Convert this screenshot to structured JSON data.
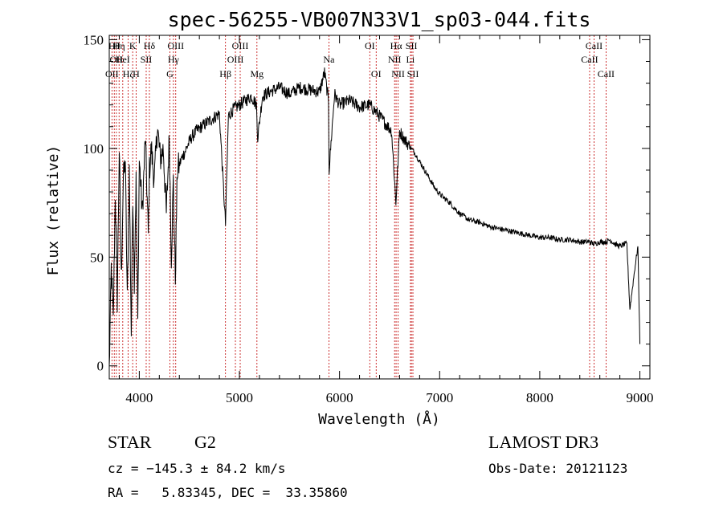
{
  "chart_data": {
    "type": "line",
    "title": "spec-56255-VB007N33V1_sp03-044.fits",
    "xlabel": "Wavelength (Å)",
    "ylabel": "Flux (relative)",
    "xlim": [
      3700,
      9100
    ],
    "ylim": [
      -6,
      152
    ],
    "xticks": [
      4000,
      5000,
      6000,
      7000,
      8000,
      9000
    ],
    "yticks": [
      0,
      50,
      100,
      150
    ],
    "series": [
      {
        "name": "flux",
        "x": [
          3700,
          3720,
          3740,
          3760,
          3780,
          3800,
          3820,
          3840,
          3860,
          3880,
          3900,
          3920,
          3935,
          3950,
          3968,
          3985,
          4000,
          4030,
          4060,
          4090,
          4101,
          4120,
          4150,
          4180,
          4210,
          4240,
          4270,
          4300,
          4320,
          4340,
          4360,
          4380,
          4420,
          4470,
          4520,
          4570,
          4620,
          4680,
          4740,
          4800,
          4861,
          4890,
          4940,
          5000,
          5060,
          5120,
          5170,
          5183,
          5230,
          5300,
          5400,
          5500,
          5600,
          5700,
          5800,
          5850,
          5890,
          5896,
          5950,
          6000,
          6100,
          6200,
          6300,
          6380,
          6450,
          6520,
          6563,
          6600,
          6650,
          6700,
          6750,
          6800,
          6850,
          6900,
          6950,
          7000,
          7100,
          7200,
          7300,
          7400,
          7500,
          7600,
          7700,
          7800,
          7900,
          8000,
          8100,
          8200,
          8300,
          8400,
          8498,
          8542,
          8600,
          8662,
          8700,
          8750,
          8800,
          8850,
          8870,
          8900,
          8950,
          8980,
          9000
        ],
        "values": [
          -2,
          45,
          20,
          80,
          30,
          100,
          40,
          85,
          95,
          30,
          90,
          15,
          80,
          40,
          85,
          20,
          95,
          70,
          105,
          60,
          90,
          100,
          85,
          110,
          95,
          100,
          70,
          105,
          50,
          85,
          40,
          90,
          95,
          100,
          105,
          108,
          110,
          112,
          114,
          116,
          65,
          115,
          118,
          120,
          122,
          124,
          120,
          105,
          124,
          126,
          128,
          125,
          128,
          127,
          126,
          135,
          122,
          90,
          125,
          120,
          122,
          119,
          120,
          116,
          112,
          108,
          75,
          108,
          104,
          101,
          98,
          94,
          90,
          86,
          82,
          79,
          75,
          70,
          67,
          66,
          64,
          63,
          62,
          61,
          60,
          59,
          59,
          58,
          58,
          57,
          57,
          56,
          57,
          57,
          58,
          56,
          55,
          56,
          56,
          26,
          45,
          55,
          10
        ]
      }
    ],
    "lines": [
      {
        "name": "OII",
        "x": 3727,
        "row": 3
      },
      {
        "name": "Hθ",
        "x": 3750,
        "row": 1
      },
      {
        "name": "OII",
        "x": 3771,
        "row": 2
      },
      {
        "name": "Hη",
        "x": 3798,
        "row": 1
      },
      {
        "name": "HeI",
        "x": 3835,
        "row": 2
      },
      {
        "name": "Hζ",
        "x": 3889,
        "row": 3
      },
      {
        "name": "K",
        "x": 3934,
        "row": 1
      },
      {
        "name": "H",
        "x": 3968,
        "row": 3
      },
      {
        "name": "SII",
        "x": 4069,
        "row": 2
      },
      {
        "name": "Hδ",
        "x": 4101,
        "row": 1
      },
      {
        "name": "G",
        "x": 4305,
        "row": 3
      },
      {
        "name": "Hγ",
        "x": 4341,
        "row": 2
      },
      {
        "name": "OIII",
        "x": 4364,
        "row": 1
      },
      {
        "name": "Hβ",
        "x": 4861,
        "row": 3
      },
      {
        "name": "OIII",
        "x": 4960,
        "row": 2
      },
      {
        "name": "OIII",
        "x": 5008,
        "row": 1
      },
      {
        "name": "Mg",
        "x": 5175,
        "row": 3
      },
      {
        "name": "Na",
        "x": 5894,
        "row": 2
      },
      {
        "name": "OI",
        "x": 6302,
        "row": 1
      },
      {
        "name": "OI",
        "x": 6366,
        "row": 3
      },
      {
        "name": "NII",
        "x": 6550,
        "row": 2
      },
      {
        "name": "Hα",
        "x": 6565,
        "row": 1
      },
      {
        "name": "NII",
        "x": 6585,
        "row": 3
      },
      {
        "name": "Li",
        "x": 6708,
        "row": 2
      },
      {
        "name": "SII",
        "x": 6718,
        "row": 1
      },
      {
        "name": "SII",
        "x": 6733,
        "row": 3
      },
      {
        "name": "CaII",
        "x": 8498,
        "row": 2
      },
      {
        "name": "CaII",
        "x": 8542,
        "row": 1
      },
      {
        "name": "CaII",
        "x": 8662,
        "row": 3
      }
    ]
  },
  "info": {
    "object_class": "STAR",
    "subclass": "G2",
    "survey": "LAMOST DR3",
    "redshift": "cz = −145.3 ± 84.2 km/s",
    "obs_date": "Obs-Date: 20121123",
    "coords": "RA =   5.83345, DEC =  33.35860"
  },
  "colors": {
    "spectrum": "#000000",
    "line_marker": "#c00000",
    "axes": "#000000"
  }
}
